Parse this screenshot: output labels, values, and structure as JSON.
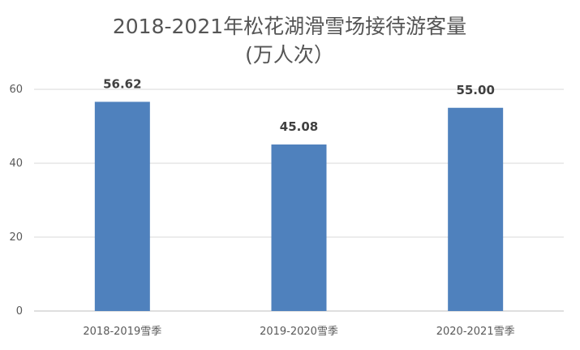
{
  "chart_data": {
    "type": "bar",
    "title_lines": [
      "2018-2021年松花湖滑雪场接待游客量",
      "(万人次）"
    ],
    "categories": [
      "2018-2019雪季",
      "2019-2020雪季",
      "2020-2021雪季"
    ],
    "values": [
      56.62,
      45.08,
      55.0
    ],
    "data_labels": [
      "56.62",
      "45.08",
      "55.00"
    ],
    "y_ticks": [
      0,
      20,
      40,
      60
    ],
    "y_tick_labels": [
      "0",
      "20",
      "40",
      "60"
    ],
    "ylim": [
      0,
      60
    ],
    "xlabel": "",
    "ylabel": "",
    "grid": true,
    "legend": "none",
    "bar_color": "#4f81bd",
    "grid_color": "#d9d9d9"
  }
}
